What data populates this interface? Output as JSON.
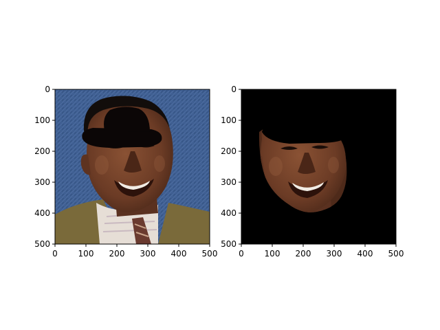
{
  "chart_data": [
    {
      "type": "image",
      "panel": "left",
      "content": "photo of smiling man in suit with drawn black bowler hat",
      "colors": {
        "background": "#3f5f92",
        "hat": "#0b0606",
        "skin": "#6b3b25",
        "suit": "#7a6a3a",
        "shirt": "#e6ded6",
        "tie": "#6a3a2f",
        "hair": "#120d0b"
      },
      "xlim": [
        0,
        500
      ],
      "ylim": [
        500,
        0
      ],
      "x_ticks": [
        "0",
        "100",
        "200",
        "300",
        "400",
        "500"
      ],
      "y_ticks": [
        "0",
        "100",
        "200",
        "300",
        "400",
        "500"
      ]
    },
    {
      "type": "image",
      "panel": "right",
      "content": "segmented face region on black background",
      "colors": {
        "background": "#000000",
        "skin": "#6b3b25",
        "hat": "#000000"
      },
      "xlim": [
        0,
        500
      ],
      "ylim": [
        500,
        0
      ],
      "x_ticks": [
        "0",
        "100",
        "200",
        "300",
        "400",
        "500"
      ],
      "y_ticks": [
        "0",
        "100",
        "200",
        "300",
        "400",
        "500"
      ]
    }
  ]
}
